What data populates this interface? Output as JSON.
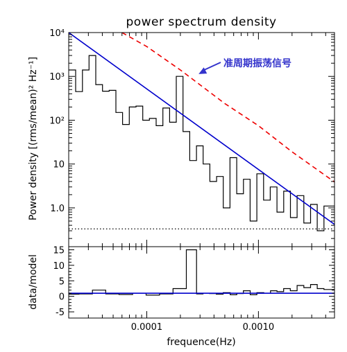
{
  "chart_data": [
    {
      "type": "line",
      "panel": "top",
      "title": "power spectrum density",
      "xlabel": "",
      "ylabel": "Power density [(rms/mean)² Hz⁻¹]",
      "xscale": "log",
      "yscale": "log",
      "xlim": [
        2e-05,
        0.0048
      ],
      "ylim": [
        0.13,
        10000
      ],
      "yticks": [
        {
          "value": 1,
          "label": "1.0"
        },
        {
          "value": 10,
          "label": "10"
        },
        {
          "value": 100,
          "label": "10²"
        },
        {
          "value": 1000,
          "label": "10³"
        },
        {
          "value": 10000,
          "label": "10⁴"
        }
      ],
      "annotation": {
        "text": "准周期振荡信号",
        "x": 0.00026,
        "y": 1050,
        "color": "#3333cc"
      },
      "series": [
        {
          "role": "data",
          "style": "step",
          "color": "#000000",
          "x": [
            2.15e-05,
            2.48e-05,
            2.84e-05,
            3.26e-05,
            3.75e-05,
            4.3e-05,
            4.94e-05,
            5.67e-05,
            6.51e-05,
            7.48e-05,
            8.59e-05,
            9.86e-05,
            0.0001133,
            0.0001301,
            0.0001494,
            0.0001716,
            0.0001971,
            0.0002263,
            0.0002599,
            0.0002985,
            0.0003428,
            0.0003937,
            0.0004521,
            0.0005192,
            0.0005963,
            0.0006848,
            0.0007864,
            0.0009031,
            0.0010372,
            0.0011911,
            0.0013679,
            0.001571,
            0.0018041,
            0.0020719,
            0.0023794,
            0.0027326,
            0.0031382,
            0.003604,
            0.0041389
          ],
          "y": [
            1400,
            450,
            1400,
            3000,
            650,
            460,
            480,
            150,
            80,
            200,
            210,
            100,
            110,
            75,
            190,
            90,
            1000,
            55,
            12,
            26,
            10,
            4,
            5.2,
            1.0,
            14,
            2.1,
            4.5,
            0.5,
            6,
            1.5,
            3.0,
            0.8,
            2.4,
            0.6,
            1.9,
            0.45,
            1.2,
            0.3,
            1.1
          ]
        },
        {
          "role": "model",
          "style": "line",
          "color": "#0000cc",
          "x": [
            2e-05,
            0.0048
          ],
          "y": [
            10000,
            0.42
          ]
        },
        {
          "role": "significance",
          "style": "dashed",
          "color": "#ee0000",
          "x": [
            6e-05,
            0.0001,
            0.0002,
            0.0005,
            0.001,
            0.002,
            0.0048
          ],
          "y": [
            12000,
            4800,
            1400,
            240,
            75,
            19,
            3.9
          ]
        },
        {
          "role": "noise-level",
          "style": "dotted",
          "color": "#000000",
          "x": [
            2e-05,
            0.0048
          ],
          "y": [
            0.33,
            0.33
          ]
        }
      ]
    },
    {
      "type": "line",
      "panel": "bottom",
      "xlabel": "frequence(Hz)",
      "ylabel": "data/model",
      "xscale": "log",
      "xlim": [
        2e-05,
        0.0048
      ],
      "ylim": [
        -7,
        16
      ],
      "yticks": [
        {
          "value": -5,
          "label": "-5"
        },
        {
          "value": 0,
          "label": "0"
        },
        {
          "value": 5,
          "label": "5"
        },
        {
          "value": 10,
          "label": "10"
        },
        {
          "value": 15,
          "label": "15"
        }
      ],
      "xticks": [
        {
          "value": 0.0001,
          "label": "0.0001"
        },
        {
          "value": 0.001,
          "label": "0.0010"
        }
      ],
      "series": [
        {
          "role": "data",
          "style": "step",
          "color": "#000000",
          "x": [
            2.15e-05,
            2.84e-05,
            3.75e-05,
            4.9e-05,
            6.5e-05,
            8.6e-05,
            0.000113,
            0.00015,
            0.000197,
            0.00026,
            0.0003,
            0.00034,
            0.00039,
            0.00045,
            0.00052,
            0.0006,
            0.00068,
            0.00079,
            0.0009,
            0.00104,
            0.0012,
            0.00137,
            0.00157,
            0.0018,
            0.00207,
            0.00238,
            0.00273,
            0.00314,
            0.0036,
            0.00414
          ],
          "y": [
            0.7,
            0.8,
            2.0,
            0.8,
            0.6,
            1.0,
            0.4,
            0.8,
            2.5,
            15,
            0.8,
            1.0,
            0.9,
            0.7,
            1.2,
            0.5,
            0.9,
            1.8,
            0.5,
            1.2,
            1.0,
            1.8,
            1.5,
            2.5,
            1.8,
            3.5,
            2.8,
            3.8,
            2.5,
            2.2
          ]
        },
        {
          "role": "unity",
          "style": "line",
          "color": "#0000cc",
          "x": [
            2e-05,
            0.0048
          ],
          "y": [
            1,
            1
          ]
        }
      ]
    }
  ]
}
